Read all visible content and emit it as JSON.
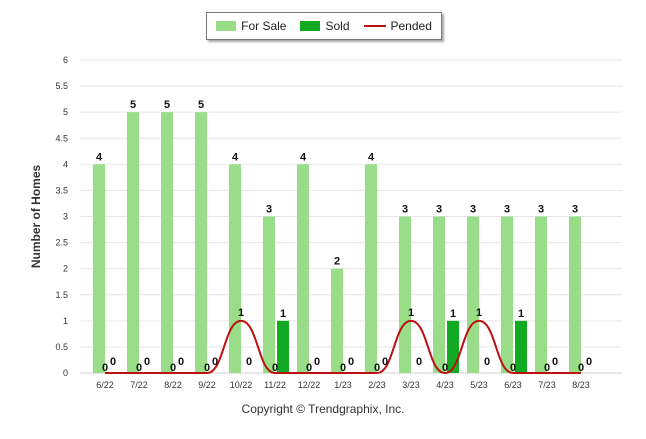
{
  "chart_data": {
    "type": "bar",
    "ylabel": "Number of Homes",
    "xlabel": "",
    "categories": [
      "6/22",
      "7/22",
      "8/22",
      "9/22",
      "10/22",
      "11/22",
      "12/22",
      "1/23",
      "2/23",
      "3/23",
      "4/23",
      "5/23",
      "6/23",
      "7/23",
      "8/23"
    ],
    "ylim": [
      0,
      6
    ],
    "yticks": [
      "0",
      "0.5",
      "1",
      "1.5",
      "2",
      "2.5",
      "3",
      "3.5",
      "4",
      "4.5",
      "5",
      "5.5",
      "6"
    ],
    "grid": true,
    "legend_position": "top-center",
    "series": [
      {
        "name": "For Sale",
        "kind": "bar",
        "color": "#99dd88",
        "values": [
          4,
          5,
          5,
          5,
          4,
          3,
          4,
          2,
          4,
          3,
          3,
          3,
          3,
          3,
          3
        ]
      },
      {
        "name": "Sold",
        "kind": "bar",
        "color": "#11aa22",
        "values": [
          0,
          0,
          0,
          0,
          0,
          1,
          0,
          0,
          0,
          0,
          1,
          0,
          1,
          0,
          0
        ]
      },
      {
        "name": "Pended",
        "kind": "line",
        "color": "#bb1111",
        "values": [
          0,
          0,
          0,
          0,
          1,
          0,
          0,
          0,
          0,
          1,
          0,
          1,
          0,
          0,
          0
        ]
      }
    ]
  },
  "footer": {
    "copyright": "Copyright © Trendgraphix, Inc."
  }
}
